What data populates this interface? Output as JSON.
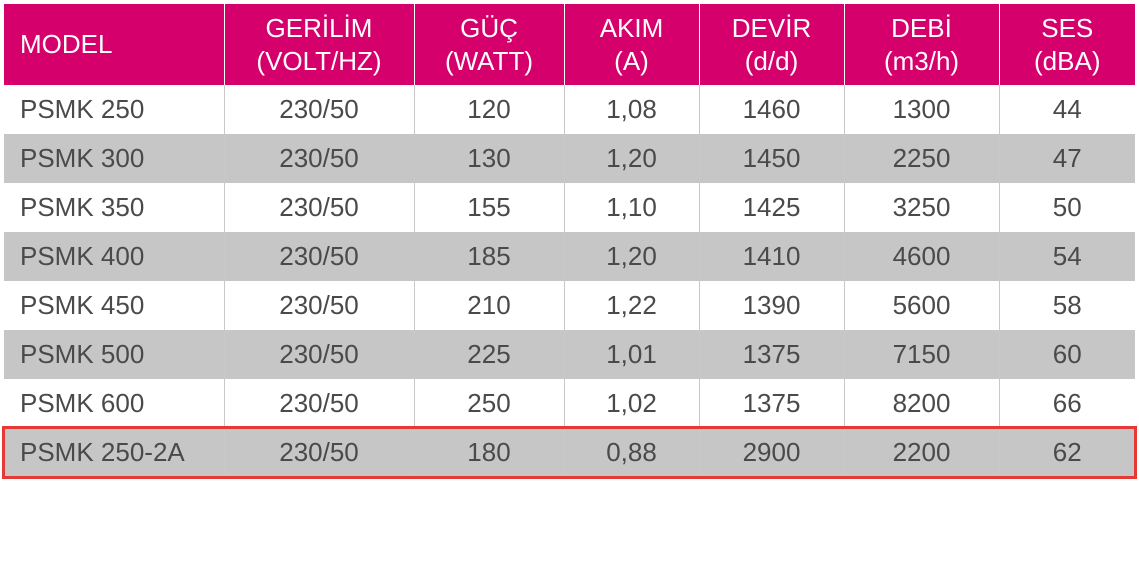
{
  "table": {
    "columns": [
      {
        "key": "model",
        "label_line1": "MODEL",
        "label_line2": "",
        "class": "col-model",
        "align": "left"
      },
      {
        "key": "gerilim",
        "label_line1": "GERİLİM",
        "label_line2": "(VOLT/HZ)",
        "class": "col-gerilim",
        "align": "center"
      },
      {
        "key": "guc",
        "label_line1": "GÜÇ",
        "label_line2": "(WATT)",
        "class": "col-guc",
        "align": "center"
      },
      {
        "key": "akim",
        "label_line1": "AKIM",
        "label_line2": "(A)",
        "class": "col-akim",
        "align": "center"
      },
      {
        "key": "devir",
        "label_line1": "DEVİR",
        "label_line2": "(d/d)",
        "class": "col-devir",
        "align": "center"
      },
      {
        "key": "debi",
        "label_line1": "DEBİ",
        "label_line2": "(m3/h)",
        "class": "col-debi",
        "align": "center"
      },
      {
        "key": "ses",
        "label_line1": "SES",
        "label_line2": "(dBA)",
        "class": "col-ses",
        "align": "center"
      }
    ],
    "rows": [
      {
        "model": "PSMK 250",
        "gerilim": "230/50",
        "guc": "120",
        "akim": "1,08",
        "devir": "1460",
        "debi": "1300",
        "ses": "44",
        "highlight": false
      },
      {
        "model": "PSMK 300",
        "gerilim": "230/50",
        "guc": "130",
        "akim": "1,20",
        "devir": "1450",
        "debi": "2250",
        "ses": "47",
        "highlight": false
      },
      {
        "model": "PSMK 350",
        "gerilim": "230/50",
        "guc": "155",
        "akim": "1,10",
        "devir": "1425",
        "debi": "3250",
        "ses": "50",
        "highlight": false
      },
      {
        "model": "PSMK 400",
        "gerilim": "230/50",
        "guc": "185",
        "akim": "1,20",
        "devir": "1410",
        "debi": "4600",
        "ses": "54",
        "highlight": false
      },
      {
        "model": "PSMK 450",
        "gerilim": "230/50",
        "guc": "210",
        "akim": "1,22",
        "devir": "1390",
        "debi": "5600",
        "ses": "58",
        "highlight": false
      },
      {
        "model": "PSMK 500",
        "gerilim": "230/50",
        "guc": "225",
        "akim": "1,01",
        "devir": "1375",
        "debi": "7150",
        "ses": "60",
        "highlight": false
      },
      {
        "model": "PSMK 600",
        "gerilim": "230/50",
        "guc": "250",
        "akim": "1,02",
        "devir": "1375",
        "debi": "8200",
        "ses": "66",
        "highlight": false
      },
      {
        "model": "PSMK 250-2A",
        "gerilim": "230/50",
        "guc": "180",
        "akim": "0,88",
        "devir": "2900",
        "debi": "2200",
        "ses": "62",
        "highlight": true
      }
    ],
    "header_bg": "#d6006c",
    "header_text_color": "#ffffff",
    "row_odd_bg": "#ffffff",
    "row_even_bg": "#c6c6c6",
    "cell_text_color": "#4a4a4a",
    "cell_border_color": "#c8c8c8",
    "highlight_border_color": "#e53935",
    "font_size_header": 26,
    "font_size_body": 26
  }
}
